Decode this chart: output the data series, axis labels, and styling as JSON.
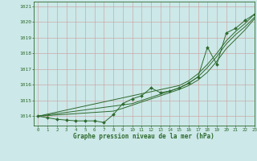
{
  "title": "Graphe pression niveau de la mer (hPa)",
  "background_color": "#cce8e8",
  "grid_color": "#99bbbb",
  "line_color": "#2d6a2d",
  "xlim": [
    -0.5,
    23
  ],
  "ylim": [
    1013.4,
    1021.3
  ],
  "yticks": [
    1014,
    1015,
    1016,
    1017,
    1018,
    1019,
    1020,
    1021
  ],
  "xticks": [
    0,
    1,
    2,
    3,
    4,
    5,
    6,
    7,
    8,
    9,
    10,
    11,
    12,
    13,
    14,
    15,
    16,
    17,
    18,
    19,
    20,
    21,
    22,
    23
  ],
  "series": {
    "main": [
      1014.0,
      1013.9,
      1013.8,
      1013.75,
      1013.7,
      1013.7,
      1013.7,
      1013.6,
      1014.1,
      1014.8,
      1015.1,
      1015.3,
      1015.8,
      1015.5,
      1015.6,
      1015.8,
      1016.1,
      1016.5,
      1018.4,
      1017.3,
      1019.3,
      1019.6,
      1020.1,
      1020.5
    ],
    "linear_top": [
      1014.0,
      1014.13,
      1014.26,
      1014.39,
      1014.52,
      1014.65,
      1014.78,
      1014.91,
      1015.04,
      1015.17,
      1015.3,
      1015.43,
      1015.56,
      1015.69,
      1015.82,
      1015.95,
      1016.25,
      1016.7,
      1017.3,
      1018.0,
      1018.8,
      1019.4,
      1019.9,
      1020.5
    ],
    "linear_mid": [
      1014.0,
      1014.08,
      1014.16,
      1014.24,
      1014.32,
      1014.4,
      1014.48,
      1014.56,
      1014.64,
      1014.72,
      1014.8,
      1015.0,
      1015.2,
      1015.4,
      1015.6,
      1015.8,
      1016.1,
      1016.5,
      1017.1,
      1017.8,
      1018.6,
      1019.2,
      1019.7,
      1020.3
    ],
    "linear_bot": [
      1014.0,
      1014.04,
      1014.08,
      1014.12,
      1014.16,
      1014.2,
      1014.24,
      1014.28,
      1014.32,
      1014.5,
      1014.7,
      1014.9,
      1015.1,
      1015.3,
      1015.5,
      1015.7,
      1015.95,
      1016.3,
      1016.8,
      1017.5,
      1018.3,
      1018.9,
      1019.5,
      1020.2
    ]
  }
}
